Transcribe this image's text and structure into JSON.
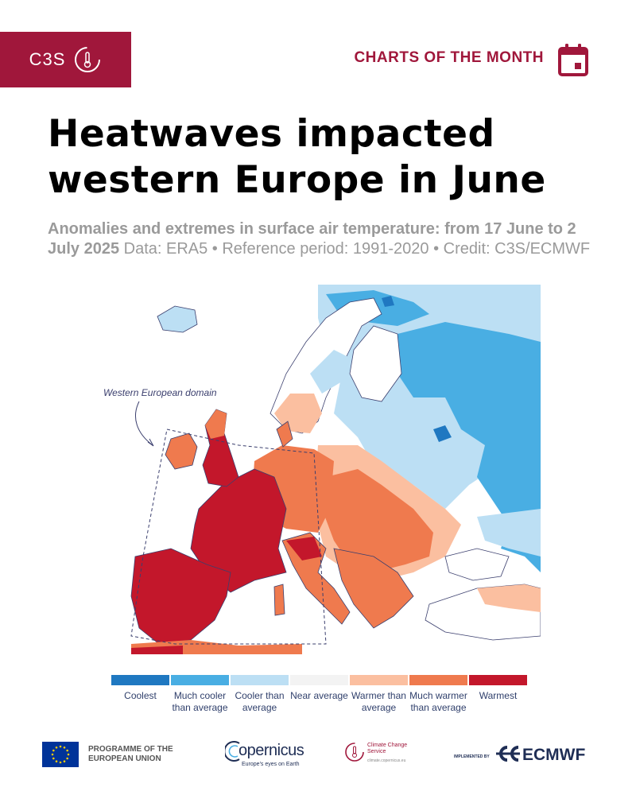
{
  "header": {
    "brand": "C3S",
    "section_label": "CHARTS OF THE MONTH"
  },
  "title": {
    "line1": "Heatwaves impacted",
    "line2": "western Europe in June"
  },
  "subtitle": {
    "bold_part": "Anomalies and extremes in surface air temperature: from 17 June to 2 July 2025",
    "regular_part": " Data: ERA5 • Reference period: 1991-2020 • Credit: C3S/ECMWF"
  },
  "map": {
    "annotation": "Western European domain",
    "colors": {
      "coolest": "#1f78c1",
      "much_cooler": "#49aee3",
      "cooler": "#bcdff4",
      "near_average": "#ffffff",
      "warmer": "#fbbfa0",
      "much_warmer": "#ef7a4e",
      "warmest": "#c3172b",
      "land_outline": "#3b3f6e"
    }
  },
  "legend": [
    {
      "label": "Coolest",
      "color": "#1f78c1"
    },
    {
      "label": "Much cooler than average",
      "color": "#49aee3"
    },
    {
      "label": "Cooler than average",
      "color": "#bcdff4"
    },
    {
      "label": "Near average",
      "color": "#f3f3f3"
    },
    {
      "label": "Warmer than average",
      "color": "#fbbfa0"
    },
    {
      "label": "Much warmer than average",
      "color": "#ef7a4e"
    },
    {
      "label": "Warmest",
      "color": "#c3172b"
    }
  ],
  "footer": {
    "eu_text": "PROGRAMME OF THE EUROPEAN UNION",
    "copernicus_word": "opernicus",
    "copernicus_tagline": "Europe's eyes on Earth",
    "ccs_name": "Climate Change Service",
    "ccs_url": "climate.copernicus.eu",
    "implemented_by": "IMPLEMENTED BY",
    "ecmwf_word": "ECMWF"
  }
}
